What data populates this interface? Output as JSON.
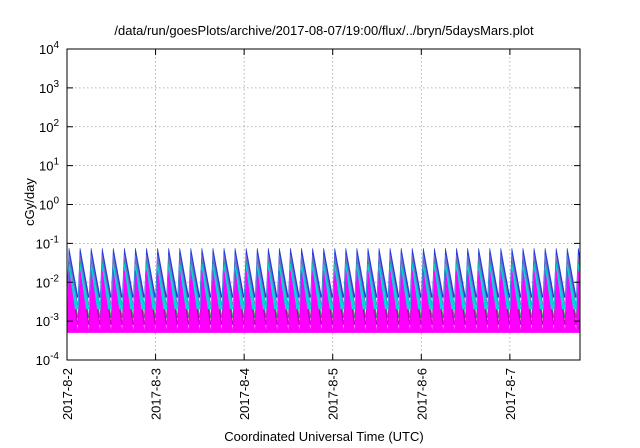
{
  "chart_data": {
    "type": "area",
    "title": "/data/run/goesPlots/archive/2017-08-07/19:00/flux/../bryn/5daysMars.plot",
    "xlabel": "Coordinated Universal Time (UTC)",
    "ylabel": "cGy/day",
    "yscale": "log",
    "ylim": [
      0.0001,
      10000
    ],
    "xlim": [
      "2017-08-02",
      "2017-08-07T19:00"
    ],
    "grid": true,
    "x_ticks": [
      "2017-8-2",
      "2017-8-3",
      "2017-8-4",
      "2017-8-5",
      "2017-8-6",
      "2017-8-7"
    ],
    "y_ticks": [
      {
        "value": 0.0001,
        "base": "10",
        "exp": "-4"
      },
      {
        "value": 0.001,
        "base": "10",
        "exp": "-3"
      },
      {
        "value": 0.01,
        "base": "10",
        "exp": "-2"
      },
      {
        "value": 0.1,
        "base": "10",
        "exp": "-1"
      },
      {
        "value": 1,
        "base": "10",
        "exp": "0"
      },
      {
        "value": 10,
        "base": "10",
        "exp": "1"
      },
      {
        "value": 100,
        "base": "10",
        "exp": "2"
      },
      {
        "value": 1000,
        "base": "10",
        "exp": "3"
      },
      {
        "value": 10000,
        "base": "10",
        "exp": "4"
      }
    ],
    "pattern": {
      "description_period_hours": 3,
      "peaks_per_day": 8
    },
    "series": [
      {
        "color": "#ff00ff",
        "peak": 0.02,
        "trough": 0.0005
      },
      {
        "color": "#b000b0",
        "peak": 0.03,
        "trough": 0.0008
      },
      {
        "color": "#2f9a5a",
        "peak": 0.035,
        "trough": 0.0012
      },
      {
        "color": "#00d8d8",
        "peak": 0.03,
        "trough": 0.002
      },
      {
        "color": "#7a6fd0",
        "peak": 0.05,
        "trough": 0.0025
      },
      {
        "color": "#2040d8",
        "peak": 0.075,
        "trough": 0.004
      }
    ]
  }
}
